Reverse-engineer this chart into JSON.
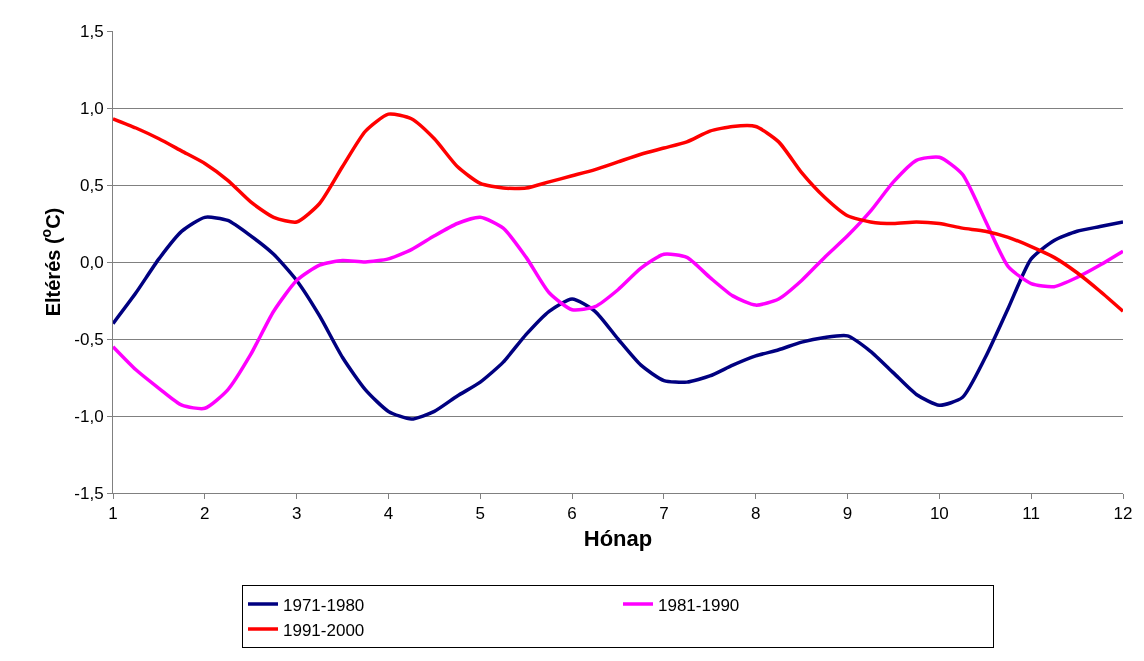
{
  "chart_data": {
    "type": "line",
    "xlabel": "Hónap",
    "ylabel": "Eltérés ($^{o}$C)",
    "x": [
      1,
      1.25,
      1.5,
      1.75,
      2,
      2.25,
      2.5,
      2.75,
      3,
      3.25,
      3.5,
      3.75,
      4,
      4.25,
      4.5,
      4.75,
      5,
      5.25,
      5.5,
      5.75,
      6,
      6.25,
      6.5,
      6.75,
      7,
      7.25,
      7.5,
      7.75,
      8,
      8.25,
      8.5,
      8.75,
      9,
      9.25,
      9.5,
      9.75,
      10,
      10.25,
      10.5,
      10.75,
      11,
      11.25,
      11.5,
      11.75,
      12
    ],
    "series": [
      {
        "name": "1971-1980",
        "color": "#000080",
        "values": [
          -0.4,
          -0.2,
          0.02,
          0.2,
          0.29,
          0.27,
          0.17,
          0.05,
          -0.12,
          -0.35,
          -0.62,
          -0.83,
          -0.97,
          -1.02,
          -0.97,
          -0.87,
          -0.78,
          -0.65,
          -0.47,
          -0.32,
          -0.24,
          -0.32,
          -0.5,
          -0.67,
          -0.77,
          -0.78,
          -0.74,
          -0.67,
          -0.61,
          -0.57,
          -0.52,
          -0.49,
          -0.48,
          -0.58,
          -0.72,
          -0.86,
          -0.93,
          -0.88,
          -0.62,
          -0.3,
          0.02,
          0.14,
          0.2,
          0.23,
          0.26
        ]
      },
      {
        "name": "1981-1990",
        "color": "#ff00ff",
        "values": [
          -0.55,
          -0.7,
          -0.82,
          -0.93,
          -0.95,
          -0.83,
          -0.6,
          -0.32,
          -0.12,
          -0.02,
          0.01,
          0.0,
          0.02,
          0.08,
          0.17,
          0.25,
          0.29,
          0.22,
          0.03,
          -0.2,
          -0.31,
          -0.29,
          -0.18,
          -0.04,
          0.05,
          0.03,
          -0.1,
          -0.22,
          -0.28,
          -0.24,
          -0.12,
          0.03,
          0.17,
          0.33,
          0.52,
          0.66,
          0.68,
          0.57,
          0.27,
          -0.03,
          -0.14,
          -0.16,
          -0.1,
          -0.02,
          0.07
        ]
      },
      {
        "name": "1991-2000",
        "color": "#ff0000",
        "values": [
          0.93,
          0.87,
          0.8,
          0.72,
          0.64,
          0.53,
          0.39,
          0.29,
          0.26,
          0.38,
          0.62,
          0.85,
          0.96,
          0.93,
          0.8,
          0.62,
          0.51,
          0.48,
          0.48,
          0.52,
          0.56,
          0.6,
          0.65,
          0.7,
          0.74,
          0.78,
          0.85,
          0.88,
          0.88,
          0.78,
          0.58,
          0.42,
          0.3,
          0.26,
          0.25,
          0.26,
          0.25,
          0.22,
          0.2,
          0.16,
          0.1,
          0.03,
          -0.07,
          -0.19,
          -0.32
        ]
      }
    ],
    "xlim": [
      1,
      12
    ],
    "xticks": [
      1,
      2,
      3,
      4,
      5,
      6,
      7,
      8,
      9,
      10,
      11,
      12
    ],
    "ylim": [
      -1.5,
      1.5
    ],
    "yticks": [
      {
        "value": -1.5,
        "label": "-1,5"
      },
      {
        "value": -1.0,
        "label": "-1,0"
      },
      {
        "value": -0.5,
        "label": "-0,5"
      },
      {
        "value": 0,
        "label": "0,0"
      },
      {
        "value": 0.5,
        "label": "0,5"
      },
      {
        "value": 1.0,
        "label": "1,0"
      },
      {
        "value": 1.5,
        "label": "1,5"
      }
    ],
    "grid": "y",
    "legend": "bottom",
    "marker": "none",
    "line_style": "solid"
  }
}
